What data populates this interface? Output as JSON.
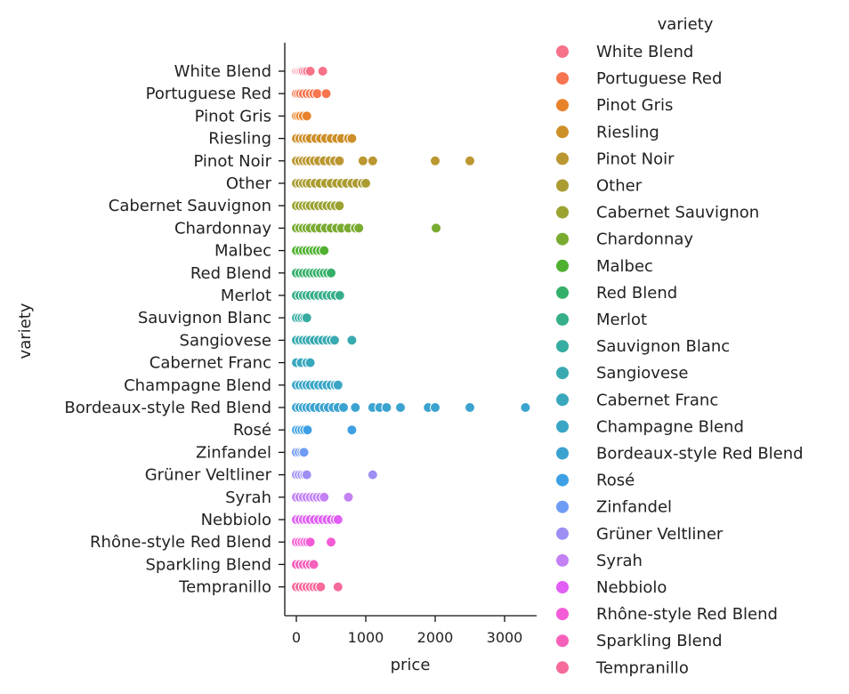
{
  "chart_data": {
    "type": "scatter",
    "xlabel": "price",
    "ylabel": "variety",
    "xlim": [
      -150,
      3400
    ],
    "xticks": [
      0,
      1000,
      2000,
      3000
    ],
    "legend_title": "variety",
    "legend_position": "right",
    "categories": [
      "White Blend",
      "Portuguese Red",
      "Pinot Gris",
      "Riesling",
      "Pinot Noir",
      "Other",
      "Cabernet Sauvignon",
      "Chardonnay",
      "Malbec",
      "Red Blend",
      "Merlot",
      "Sauvignon Blanc",
      "Sangiovese",
      "Cabernet Franc",
      "Champagne Blend",
      "Bordeaux-style Red Blend",
      "Rosé",
      "Zinfandel",
      "Grüner Veltliner",
      "Syrah",
      "Nebbiolo",
      "Rhône-style Red Blend",
      "Sparkling Blend",
      "Tempranillo"
    ],
    "colors": [
      "#f77189",
      "#f7754f",
      "#e8822a",
      "#cd8f28",
      "#bb9731",
      "#ab9c32",
      "#9ba331",
      "#79ab31",
      "#50b131",
      "#35b06b",
      "#36ae8a",
      "#37aca1",
      "#38aab0",
      "#39a7bc",
      "#3aa6c7",
      "#3ba3d0",
      "#3ea0e4",
      "#6e9bf4",
      "#9c8ff4",
      "#c381f4",
      "#e15ff4",
      "#f45bd7",
      "#f560ba",
      "#f66a9c"
    ],
    "series": [
      {
        "name": "White Blend",
        "x": [
          0,
          20,
          40,
          60,
          80,
          100,
          130,
          160,
          200,
          380
        ]
      },
      {
        "name": "Portuguese Red",
        "x": [
          0,
          30,
          60,
          100,
          150,
          200,
          250,
          300,
          430
        ]
      },
      {
        "name": "Pinot Gris",
        "x": [
          0,
          30,
          60,
          100,
          150
        ]
      },
      {
        "name": "Riesling",
        "x": [
          0,
          50,
          100,
          150,
          200,
          280,
          350,
          420,
          500,
          580,
          650,
          750,
          800
        ]
      },
      {
        "name": "Pinot Noir",
        "x": [
          0,
          50,
          100,
          150,
          200,
          260,
          320,
          400,
          480,
          550,
          620,
          960,
          1100,
          2000,
          2500
        ]
      },
      {
        "name": "Other",
        "x": [
          0,
          50,
          100,
          150,
          200,
          270,
          340,
          420,
          500,
          580,
          650,
          720,
          800,
          870,
          950,
          1000
        ]
      },
      {
        "name": "Cabernet Sauvignon",
        "x": [
          0,
          50,
          100,
          150,
          200,
          260,
          320,
          380,
          440,
          500,
          560,
          620
        ]
      },
      {
        "name": "Chardonnay",
        "x": [
          0,
          50,
          100,
          150,
          200,
          270,
          340,
          420,
          500,
          580,
          650,
          750,
          850,
          900,
          2013
        ]
      },
      {
        "name": "Malbec",
        "x": [
          0,
          50,
          100,
          150,
          200,
          250,
          300,
          350,
          400
        ]
      },
      {
        "name": "Red Blend",
        "x": [
          0,
          50,
          100,
          150,
          200,
          250,
          300,
          350,
          400,
          450,
          500
        ]
      },
      {
        "name": "Merlot",
        "x": [
          0,
          50,
          100,
          150,
          200,
          260,
          320,
          380,
          440,
          500,
          560,
          625
        ]
      },
      {
        "name": "Sauvignon Blanc",
        "x": [
          0,
          40,
          80,
          120,
          150
        ]
      },
      {
        "name": "Sangiovese",
        "x": [
          0,
          50,
          100,
          150,
          200,
          260,
          320,
          380,
          440,
          500,
          550,
          800
        ]
      },
      {
        "name": "Cabernet Franc",
        "x": [
          0,
          70,
          150,
          200
        ]
      },
      {
        "name": "Champagne Blend",
        "x": [
          0,
          50,
          100,
          150,
          200,
          260,
          320,
          380,
          440,
          500,
          560,
          600
        ]
      },
      {
        "name": "Bordeaux-style Red Blend",
        "x": [
          0,
          50,
          100,
          150,
          200,
          260,
          330,
          400,
          460,
          530,
          600,
          680,
          850,
          1100,
          1200,
          1300,
          1500,
          1900,
          2000,
          2500,
          3300
        ]
      },
      {
        "name": "Rosé",
        "x": [
          0,
          40,
          80,
          120,
          160,
          800
        ]
      },
      {
        "name": "Zinfandel",
        "x": [
          0,
          40,
          80,
          110
        ]
      },
      {
        "name": "Grüner Veltliner",
        "x": [
          0,
          40,
          80,
          120,
          150,
          1100
        ]
      },
      {
        "name": "Syrah",
        "x": [
          0,
          50,
          100,
          150,
          200,
          250,
          300,
          350,
          400,
          750
        ]
      },
      {
        "name": "Nebbiolo",
        "x": [
          0,
          50,
          100,
          150,
          200,
          260,
          320,
          380,
          440,
          500,
          560,
          600
        ]
      },
      {
        "name": "Rhône-style Red Blend",
        "x": [
          0,
          40,
          80,
          120,
          160,
          200,
          500
        ]
      },
      {
        "name": "Sparkling Blend",
        "x": [
          0,
          50,
          100,
          150,
          200,
          250
        ]
      },
      {
        "name": "Tempranillo",
        "x": [
          0,
          50,
          100,
          150,
          200,
          250,
          300,
          350,
          600
        ]
      }
    ]
  }
}
